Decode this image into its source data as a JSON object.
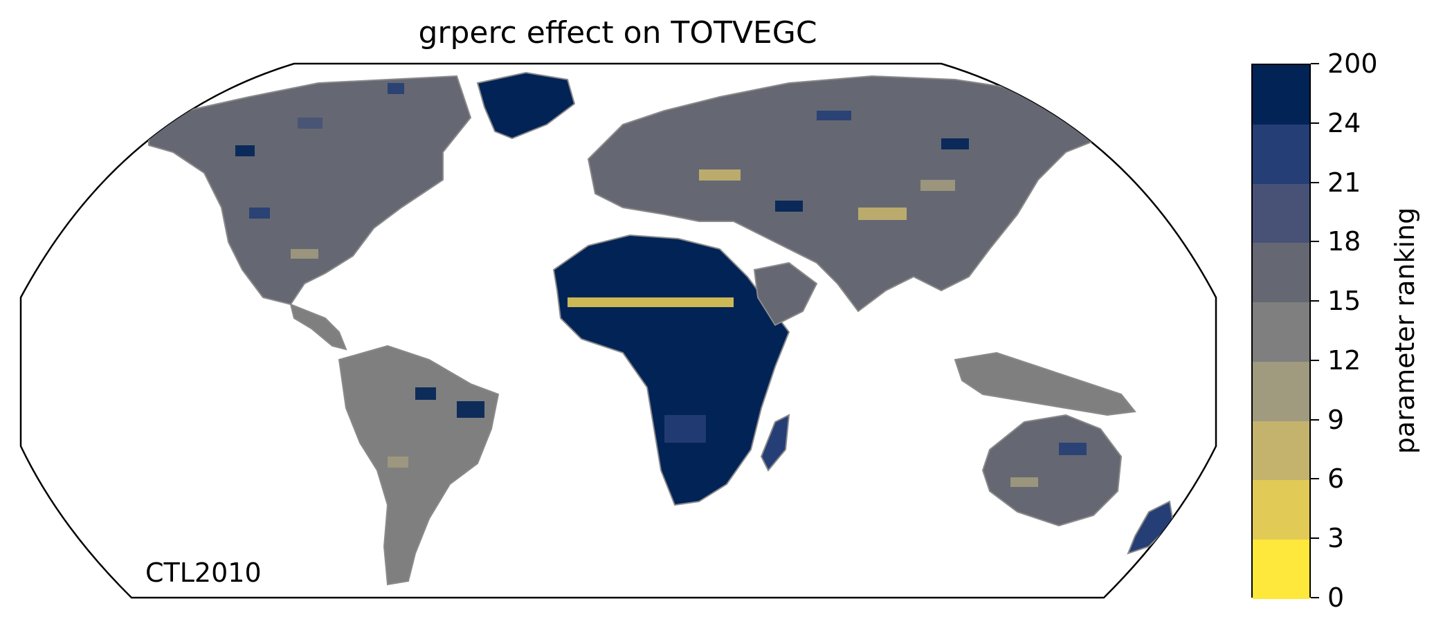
{
  "title": "grperc effect on TOTVEGC",
  "corner_label": "CTL2010",
  "colorbar": {
    "label": "parameter ranking",
    "tick_labels": [
      "0",
      "3",
      "6",
      "9",
      "12",
      "15",
      "18",
      "21",
      "24",
      "200"
    ],
    "colors": [
      "#fde83b",
      "#e2ca56",
      "#c4b36d",
      "#a09a7e",
      "#7f7f7f",
      "#656872",
      "#475276",
      "#253e76",
      "#012356"
    ]
  },
  "map": {
    "projection": "robinson",
    "ocean_color": "#ffffff",
    "coastline_color": "#8a8a8a"
  }
}
